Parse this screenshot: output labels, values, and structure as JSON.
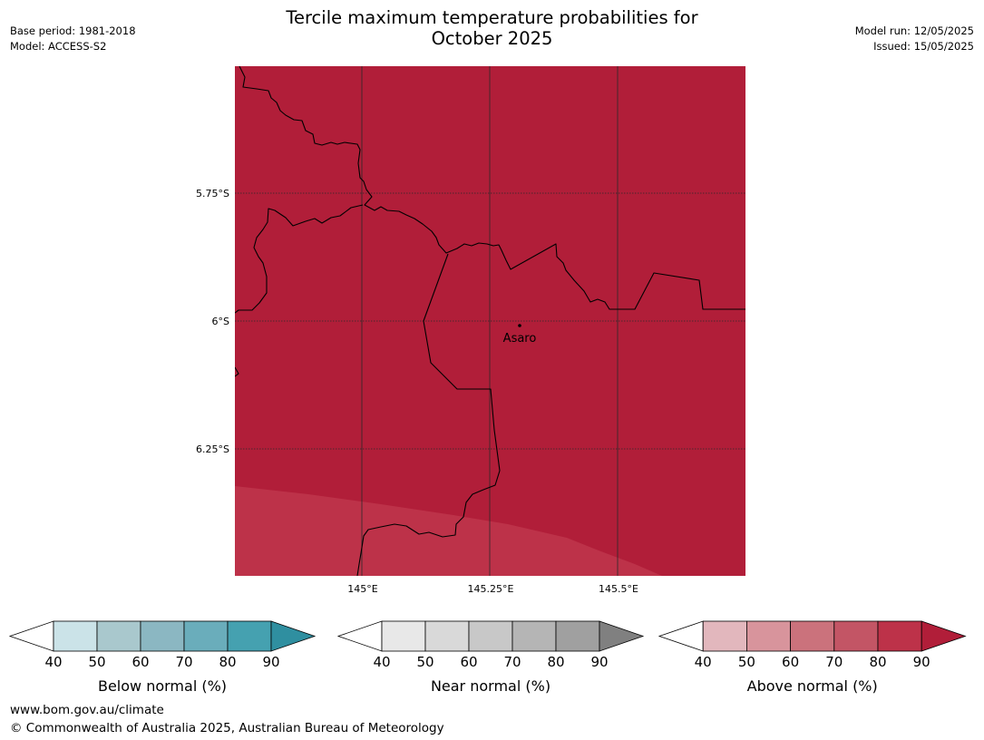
{
  "title_line1": "Tercile maximum temperature probabilities for",
  "title_line2": "October 2025",
  "meta_left": {
    "base_period": "Base period: 1981-2018",
    "model": "Model: ACCESS-S2"
  },
  "meta_right": {
    "model_run": "Model run: 12/05/2025",
    "issued": "Issued: 15/05/2025"
  },
  "map": {
    "latitude_labels": [
      "5.75°S",
      "6°S",
      "6.25°S"
    ],
    "longitude_labels": [
      "145°E",
      "145.25°E",
      "145.5°E"
    ],
    "place": "Asaro",
    "colors": {
      "above_90": "#b11e39",
      "above_80": "#bd3249"
    }
  },
  "colorbars": [
    {
      "label": "Below normal (%)",
      "ticks": [
        "40",
        "50",
        "60",
        "70",
        "80",
        "90"
      ],
      "colors": [
        "#ffffff",
        "#cbe3e8",
        "#a9c8cd",
        "#8bb7c2",
        "#6aadbb",
        "#45a1b0",
        "#2f8fa0"
      ]
    },
    {
      "label": "Near normal (%)",
      "ticks": [
        "40",
        "50",
        "60",
        "70",
        "80",
        "90"
      ],
      "colors": [
        "#ffffff",
        "#e8e8e8",
        "#d9d9d9",
        "#c8c8c8",
        "#b5b5b5",
        "#a0a0a0",
        "#808080"
      ]
    },
    {
      "label": "Above normal (%)",
      "ticks": [
        "40",
        "50",
        "60",
        "70",
        "80",
        "90"
      ],
      "colors": [
        "#ffffff",
        "#e2b7bd",
        "#d8949c",
        "#cb727c",
        "#c35565",
        "#bd3249",
        "#b11e39"
      ]
    }
  ],
  "footer": {
    "url": "www.bom.gov.au/climate",
    "copyright": "© Commonwealth of Australia 2025, Australian Bureau of Meteorology"
  }
}
